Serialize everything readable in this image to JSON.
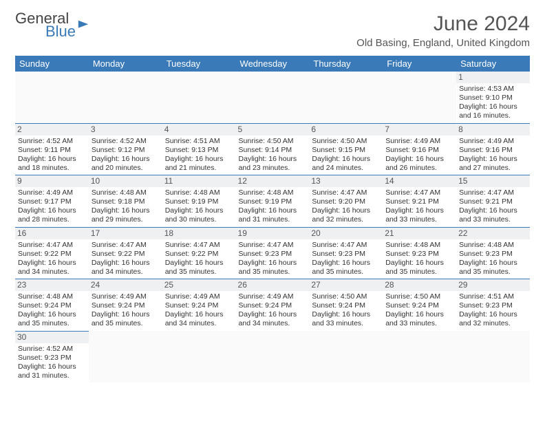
{
  "logo": {
    "general": "General",
    "blue": "Blue"
  },
  "title": "June 2024",
  "location": "Old Basing, England, United Kingdom",
  "colors": {
    "header_bg": "#3a7ab8",
    "header_text": "#ffffff",
    "border": "#3a7ab8",
    "daybg": "#eef0f2"
  },
  "day_headers": [
    "Sunday",
    "Monday",
    "Tuesday",
    "Wednesday",
    "Thursday",
    "Friday",
    "Saturday"
  ],
  "weeks": [
    [
      null,
      null,
      null,
      null,
      null,
      null,
      {
        "d": "1",
        "sr": "4:53 AM",
        "ss": "9:10 PM",
        "dl": "16 hours and 16 minutes."
      }
    ],
    [
      {
        "d": "2",
        "sr": "4:52 AM",
        "ss": "9:11 PM",
        "dl": "16 hours and 18 minutes."
      },
      {
        "d": "3",
        "sr": "4:52 AM",
        "ss": "9:12 PM",
        "dl": "16 hours and 20 minutes."
      },
      {
        "d": "4",
        "sr": "4:51 AM",
        "ss": "9:13 PM",
        "dl": "16 hours and 21 minutes."
      },
      {
        "d": "5",
        "sr": "4:50 AM",
        "ss": "9:14 PM",
        "dl": "16 hours and 23 minutes."
      },
      {
        "d": "6",
        "sr": "4:50 AM",
        "ss": "9:15 PM",
        "dl": "16 hours and 24 minutes."
      },
      {
        "d": "7",
        "sr": "4:49 AM",
        "ss": "9:16 PM",
        "dl": "16 hours and 26 minutes."
      },
      {
        "d": "8",
        "sr": "4:49 AM",
        "ss": "9:16 PM",
        "dl": "16 hours and 27 minutes."
      }
    ],
    [
      {
        "d": "9",
        "sr": "4:49 AM",
        "ss": "9:17 PM",
        "dl": "16 hours and 28 minutes."
      },
      {
        "d": "10",
        "sr": "4:48 AM",
        "ss": "9:18 PM",
        "dl": "16 hours and 29 minutes."
      },
      {
        "d": "11",
        "sr": "4:48 AM",
        "ss": "9:19 PM",
        "dl": "16 hours and 30 minutes."
      },
      {
        "d": "12",
        "sr": "4:48 AM",
        "ss": "9:19 PM",
        "dl": "16 hours and 31 minutes."
      },
      {
        "d": "13",
        "sr": "4:47 AM",
        "ss": "9:20 PM",
        "dl": "16 hours and 32 minutes."
      },
      {
        "d": "14",
        "sr": "4:47 AM",
        "ss": "9:21 PM",
        "dl": "16 hours and 33 minutes."
      },
      {
        "d": "15",
        "sr": "4:47 AM",
        "ss": "9:21 PM",
        "dl": "16 hours and 33 minutes."
      }
    ],
    [
      {
        "d": "16",
        "sr": "4:47 AM",
        "ss": "9:22 PM",
        "dl": "16 hours and 34 minutes."
      },
      {
        "d": "17",
        "sr": "4:47 AM",
        "ss": "9:22 PM",
        "dl": "16 hours and 34 minutes."
      },
      {
        "d": "18",
        "sr": "4:47 AM",
        "ss": "9:22 PM",
        "dl": "16 hours and 35 minutes."
      },
      {
        "d": "19",
        "sr": "4:47 AM",
        "ss": "9:23 PM",
        "dl": "16 hours and 35 minutes."
      },
      {
        "d": "20",
        "sr": "4:47 AM",
        "ss": "9:23 PM",
        "dl": "16 hours and 35 minutes."
      },
      {
        "d": "21",
        "sr": "4:48 AM",
        "ss": "9:23 PM",
        "dl": "16 hours and 35 minutes."
      },
      {
        "d": "22",
        "sr": "4:48 AM",
        "ss": "9:23 PM",
        "dl": "16 hours and 35 minutes."
      }
    ],
    [
      {
        "d": "23",
        "sr": "4:48 AM",
        "ss": "9:24 PM",
        "dl": "16 hours and 35 minutes."
      },
      {
        "d": "24",
        "sr": "4:49 AM",
        "ss": "9:24 PM",
        "dl": "16 hours and 35 minutes."
      },
      {
        "d": "25",
        "sr": "4:49 AM",
        "ss": "9:24 PM",
        "dl": "16 hours and 34 minutes."
      },
      {
        "d": "26",
        "sr": "4:49 AM",
        "ss": "9:24 PM",
        "dl": "16 hours and 34 minutes."
      },
      {
        "d": "27",
        "sr": "4:50 AM",
        "ss": "9:24 PM",
        "dl": "16 hours and 33 minutes."
      },
      {
        "d": "28",
        "sr": "4:50 AM",
        "ss": "9:24 PM",
        "dl": "16 hours and 33 minutes."
      },
      {
        "d": "29",
        "sr": "4:51 AM",
        "ss": "9:23 PM",
        "dl": "16 hours and 32 minutes."
      }
    ],
    [
      {
        "d": "30",
        "sr": "4:52 AM",
        "ss": "9:23 PM",
        "dl": "16 hours and 31 minutes."
      },
      null,
      null,
      null,
      null,
      null,
      null
    ]
  ],
  "labels": {
    "sunrise": "Sunrise: ",
    "sunset": "Sunset: ",
    "daylight": "Daylight: "
  }
}
